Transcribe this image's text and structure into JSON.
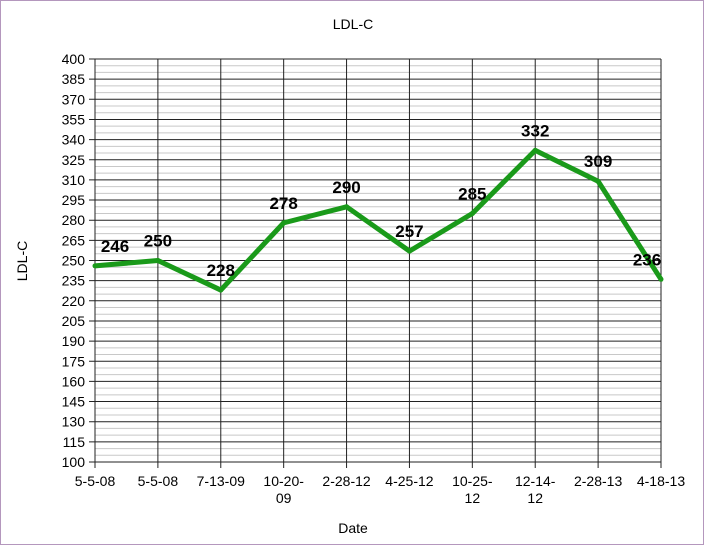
{
  "chart_data": {
    "type": "line",
    "title": "LDL-C",
    "xlabel": "Date",
    "ylabel": "LDL-C",
    "categories": [
      "5-5-08",
      "5-5-08",
      "7-13-09",
      "10-20-09",
      "2-28-12",
      "4-25-12",
      "10-25-12",
      "12-14-12",
      "2-28-13",
      "4-18-13"
    ],
    "series": [
      {
        "values": [
          246,
          250,
          228,
          278,
          290,
          257,
          285,
          332,
          309,
          236
        ],
        "color": "#1a9a1a"
      }
    ],
    "ylim": [
      100,
      400
    ],
    "yticks": [
      100,
      115,
      130,
      145,
      160,
      175,
      190,
      205,
      220,
      235,
      250,
      265,
      280,
      295,
      310,
      325,
      340,
      355,
      370,
      385,
      400
    ],
    "minor_step": 5,
    "grid": true,
    "data_labels": true
  }
}
